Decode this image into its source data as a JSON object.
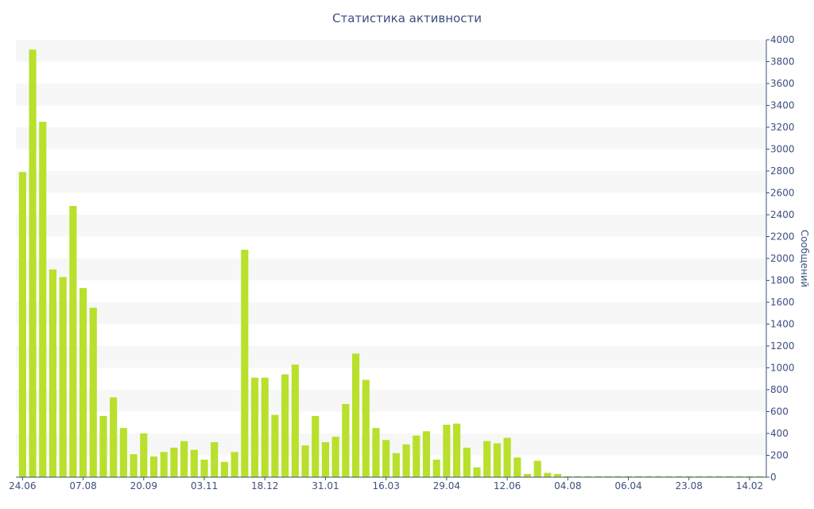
{
  "chart_data": {
    "type": "bar",
    "title": "Статистика активности",
    "xlabel": "",
    "ylabel": "Сообщений",
    "ylim": [
      0,
      4000
    ],
    "y_ticks": [
      0,
      200,
      400,
      600,
      800,
      1000,
      1200,
      1400,
      1600,
      1800,
      2000,
      2200,
      2400,
      2600,
      2800,
      3000,
      3200,
      3400,
      3600,
      3800,
      4000
    ],
    "y_axis_side": "right",
    "grid": "alternating horizontal bands",
    "x_tick_labels": [
      {
        "label": "24.06",
        "index": 0
      },
      {
        "label": "07.08",
        "index": 6
      },
      {
        "label": "20.09",
        "index": 12
      },
      {
        "label": "03.11",
        "index": 18
      },
      {
        "label": "18.12",
        "index": 24
      },
      {
        "label": "31.01",
        "index": 30
      },
      {
        "label": "16.03",
        "index": 36
      },
      {
        "label": "29.04",
        "index": 42
      },
      {
        "label": "12.06",
        "index": 48
      },
      {
        "label": "04.08",
        "index": 54
      },
      {
        "label": "06.04",
        "index": 60
      },
      {
        "label": "23.08",
        "index": 66
      },
      {
        "label": "14.02",
        "index": 72
      }
    ],
    "values": [
      2790,
      3910,
      3250,
      1900,
      1830,
      2480,
      1730,
      1550,
      560,
      730,
      450,
      210,
      400,
      190,
      230,
      270,
      330,
      250,
      160,
      320,
      140,
      230,
      2080,
      910,
      910,
      570,
      940,
      1030,
      290,
      560,
      320,
      370,
      670,
      1130,
      890,
      450,
      340,
      220,
      300,
      380,
      420,
      160,
      480,
      490,
      270,
      90,
      330,
      310,
      360,
      180,
      30,
      150,
      40,
      30,
      10,
      10,
      10,
      10,
      10,
      10,
      10,
      10,
      10,
      10,
      10,
      10,
      10,
      10,
      10,
      10,
      10,
      10,
      10,
      10
    ],
    "colors": {
      "bar": "#b8e02c",
      "axis": "#3d4f7f",
      "band": "#f7f7f7"
    }
  }
}
